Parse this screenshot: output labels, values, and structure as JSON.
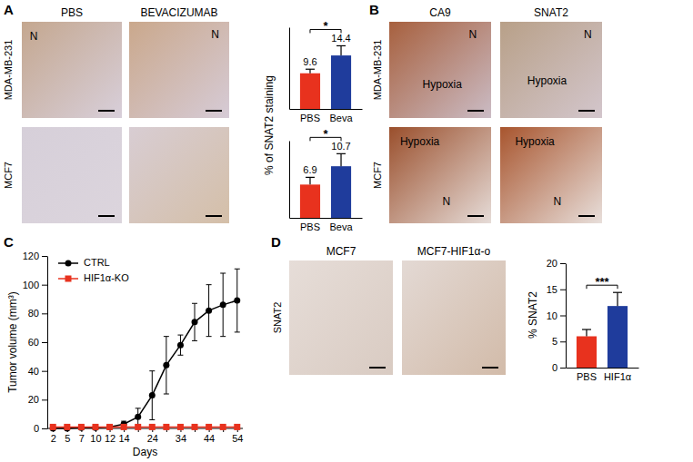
{
  "chart_data": [
    {
      "type": "bar",
      "ylabel": "% of SNAT2 staining",
      "categories": [
        "PBS",
        "Beva"
      ],
      "values": [
        9.6,
        14.4
      ],
      "errors": [
        1.1,
        2.6
      ],
      "colors": [
        "#e8321e",
        "#1f3c9c"
      ],
      "ylim": [
        0,
        22
      ],
      "tick_labels": "x",
      "data_labels": true,
      "significance": "*"
    },
    {
      "type": "bar",
      "categories": [
        "PBS",
        "Beva"
      ],
      "values": [
        6.9,
        10.7
      ],
      "errors": [
        1.5,
        2.6
      ],
      "colors": [
        "#e8321e",
        "#1f3c9c"
      ],
      "ylim": [
        0,
        16
      ],
      "tick_labels": "x",
      "data_labels": true,
      "significance": "*"
    },
    {
      "type": "line",
      "xlabel": "Days",
      "ylabel": "Tumor volume (mm³)",
      "categories": [
        "2",
        "5",
        "7",
        "10",
        "12",
        "14",
        null,
        "24",
        null,
        "34",
        null,
        "44",
        null,
        "54"
      ],
      "ylim": [
        0,
        120
      ],
      "yticks": [
        0,
        20,
        40,
        60,
        80,
        100,
        120
      ],
      "legend": "upper left",
      "series": [
        {
          "name": "CTRL",
          "color": "#000000",
          "marker": "circle",
          "values": [
            0,
            0,
            0.5,
            0.5,
            1,
            3,
            8,
            23,
            44,
            58,
            74,
            82,
            86,
            89
          ],
          "errors": [
            0,
            0,
            0.3,
            0.3,
            0.5,
            2,
            6,
            17,
            20,
            7,
            13,
            18,
            22,
            22
          ]
        },
        {
          "name": "HIF1α-KO",
          "color": "#e8321e",
          "marker": "square",
          "values": [
            1,
            1,
            1,
            1,
            1,
            1,
            1,
            1,
            1,
            1,
            1,
            1,
            1,
            1
          ]
        }
      ]
    },
    {
      "type": "bar",
      "ylabel": "% SNAT2",
      "categories": [
        "PBS",
        "HIF1α"
      ],
      "values": [
        6.0,
        11.8
      ],
      "errors": [
        1.3,
        2.6
      ],
      "colors": [
        "#e8321e",
        "#1f3c9c"
      ],
      "ylim": [
        0,
        20
      ],
      "yticks": [
        0,
        5,
        10,
        15,
        20
      ],
      "data_labels": false,
      "significance": "***"
    }
  ],
  "figure": {
    "panels": [
      {
        "letter": "A",
        "columns": [
          "PBS",
          "BEVACIZUMAB"
        ],
        "rows": [
          "MDA-MB-231",
          "MCF7"
        ],
        "images": [
          [
            [
              "N"
            ],
            [
              "N"
            ]
          ],
          [
            [],
            []
          ]
        ]
      },
      {
        "letter": "B",
        "columns": [
          "CA9",
          "SNAT2"
        ],
        "rows": [
          "MDA-MB-231",
          "MCF7"
        ],
        "images": [
          [
            [
              "N",
              "Hypoxia"
            ],
            [
              "N",
              "Hypoxia"
            ]
          ],
          [
            [
              "Hypoxia",
              "N"
            ],
            [
              "Hypoxia",
              "N"
            ]
          ]
        ]
      },
      {
        "letter": "C"
      },
      {
        "letter": "D",
        "columns": [
          "MCF7",
          "MCF7-HIF1α-o"
        ],
        "rows": [
          "SNAT2"
        ],
        "images": [
          [
            [],
            []
          ]
        ]
      }
    ]
  }
}
